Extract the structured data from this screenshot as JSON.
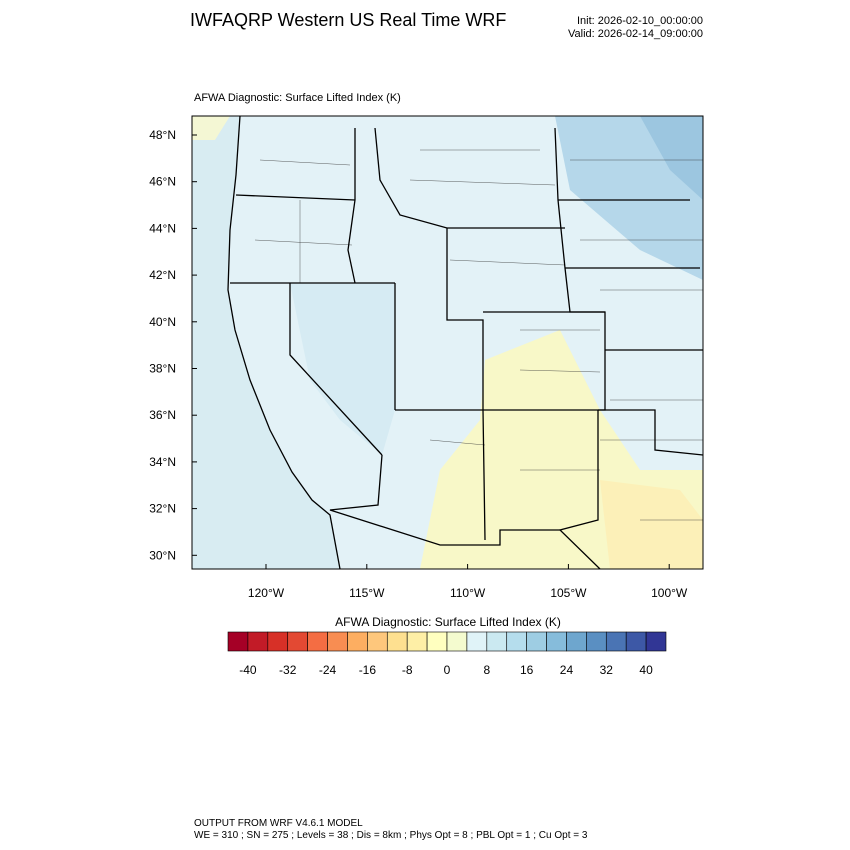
{
  "header": {
    "title": "IWFAQRP Western US Real Time WRF",
    "init": "Init: 2026-02-10_00:00:00",
    "valid": "Valid: 2026-02-14_09:00:00"
  },
  "map": {
    "title": "AFWA Diagnostic: Surface Lifted Index   (K)",
    "lat_labels": [
      "48°N",
      "46°N",
      "44°N",
      "42°N",
      "40°N",
      "38°N",
      "36°N",
      "34°N",
      "32°N",
      "30°N"
    ],
    "lon_labels": [
      "120°W",
      "115°W",
      "110°W",
      "105°W",
      "100°W"
    ]
  },
  "colorbar": {
    "title": "AFWA Diagnostic: Surface Lifted Index  (K)",
    "labels": [
      -40,
      -32,
      -24,
      -16,
      -8,
      0,
      8,
      16,
      24,
      32,
      40
    ],
    "colors": [
      "#a50026",
      "#c21b27",
      "#d73027",
      "#e34933",
      "#f46d43",
      "#f88d52",
      "#fdae61",
      "#fec77c",
      "#fee090",
      "#feefa6",
      "#ffffbf",
      "#f4fbcf",
      "#e0f3f8",
      "#cbe9f1",
      "#b5dded",
      "#9ecde3",
      "#86bcdb",
      "#6ea6ce",
      "#5a8fc2",
      "#4a74b4",
      "#3d58a6",
      "#313695"
    ]
  },
  "footer": {
    "line1": "OUTPUT FROM WRF V4.6.1 MODEL",
    "line2": "WE = 310 ; SN = 275 ; Levels = 38 ; Dis = 8km ; Phys Opt = 8 ; PBL Opt = 1 ; Cu Opt = 3"
  }
}
